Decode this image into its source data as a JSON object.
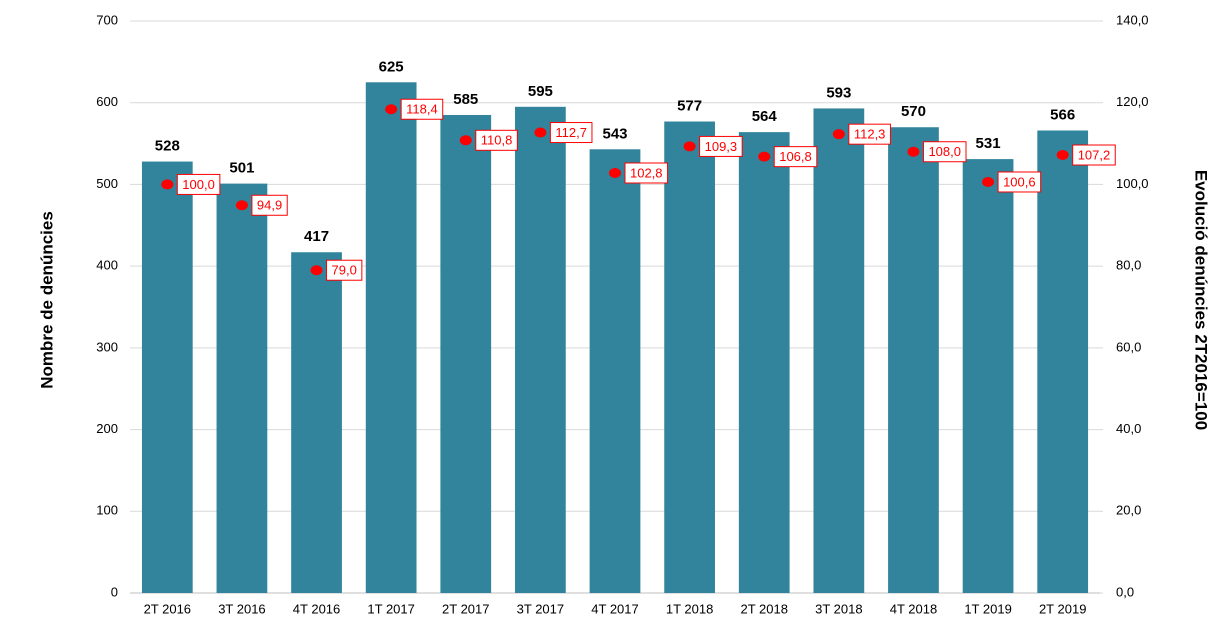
{
  "chart_data": {
    "type": "bar",
    "ylabel": "Nombre de denúncies",
    "y2label": "Evolució denúncies 2T2016=100",
    "categories": [
      "2T 2016",
      "3T 2016",
      "4T 2016",
      "1T 2017",
      "2T 2017",
      "3T 2017",
      "4T 2017",
      "1T 2018",
      "2T 2018",
      "3T 2018",
      "4T 2018",
      "1T 2019",
      "2T 2019"
    ],
    "series": [
      {
        "type": "bar",
        "color": "#31849b",
        "values": [
          528,
          501,
          417,
          625,
          585,
          595,
          543,
          577,
          564,
          593,
          570,
          531,
          566
        ]
      },
      {
        "type": "scatter",
        "axis": "y2",
        "color": "#ff0000",
        "values": [
          100.0,
          94.9,
          79.0,
          118.4,
          110.8,
          112.7,
          102.8,
          109.3,
          106.8,
          112.3,
          108.0,
          100.6,
          107.2
        ],
        "value_labels": [
          "100,0",
          "94,9",
          "79,0",
          "118,4",
          "110,8",
          "112,7",
          "102,8",
          "109,3",
          "106,8",
          "112,3",
          "108,0",
          "100,6",
          "107,2"
        ]
      }
    ],
    "ylim": [
      0,
      700
    ],
    "yticks": [
      0,
      100,
      200,
      300,
      400,
      500,
      600,
      700
    ],
    "y2lim": [
      0,
      140
    ],
    "y2ticks": [
      {
        "value": 0,
        "label": "0,0"
      },
      {
        "value": 20,
        "label": "20,0"
      },
      {
        "value": 40,
        "label": "40,0"
      },
      {
        "value": 60,
        "label": "60,0"
      },
      {
        "value": 80,
        "label": "80,0"
      },
      {
        "value": 100,
        "label": "100,0"
      },
      {
        "value": 120,
        "label": "120,0"
      },
      {
        "value": 140,
        "label": "140,0"
      }
    ],
    "grid": true
  }
}
